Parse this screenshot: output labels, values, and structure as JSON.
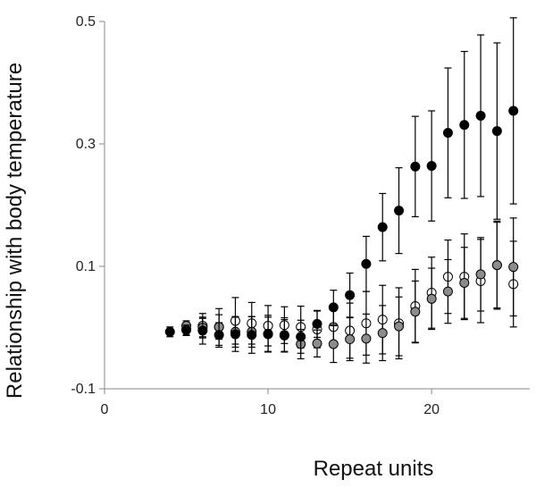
{
  "chart_data": {
    "type": "scatter",
    "xlabel": "Repeat units",
    "ylabel": "Relationship with body temperature",
    "xlim": [
      0,
      26
    ],
    "ylim": [
      -0.1,
      0.5
    ],
    "xticks": [
      0,
      10,
      20
    ],
    "yticks": [
      -0.1,
      0.1,
      0.3,
      0.5
    ],
    "y_tick_labels": [
      "-0.1",
      "0.1",
      "0.3",
      "0.5"
    ],
    "x_tick_labels": [
      "0",
      "10",
      "20"
    ],
    "grid": false,
    "legend": "none",
    "series": [
      {
        "style": "filled-black",
        "color": "#000000",
        "points": [
          {
            "x": 4,
            "y": -0.007,
            "err": 0.008
          },
          {
            "x": 5,
            "y": -0.004,
            "err": 0.008
          },
          {
            "x": 6,
            "y": -0.005,
            "err": 0.022
          },
          {
            "x": 7,
            "y": -0.012,
            "err": 0.02
          },
          {
            "x": 8,
            "y": -0.011,
            "err": 0.028
          },
          {
            "x": 9,
            "y": -0.012,
            "err": 0.03
          },
          {
            "x": 10,
            "y": -0.01,
            "err": 0.03
          },
          {
            "x": 11,
            "y": -0.012,
            "err": 0.028
          },
          {
            "x": 12,
            "y": -0.015,
            "err": 0.027
          },
          {
            "x": 13,
            "y": 0.006,
            "err": 0.022
          },
          {
            "x": 14,
            "y": 0.033,
            "err": 0.028
          },
          {
            "x": 15,
            "y": 0.053,
            "err": 0.036
          },
          {
            "x": 16,
            "y": 0.104,
            "err": 0.045
          },
          {
            "x": 17,
            "y": 0.164,
            "err": 0.055
          },
          {
            "x": 18,
            "y": 0.191,
            "err": 0.07
          },
          {
            "x": 19,
            "y": 0.263,
            "err": 0.082
          },
          {
            "x": 20,
            "y": 0.264,
            "err": 0.09
          },
          {
            "x": 21,
            "y": 0.318,
            "err": 0.106
          },
          {
            "x": 22,
            "y": 0.331,
            "err": 0.12
          },
          {
            "x": 23,
            "y": 0.346,
            "err": 0.132
          },
          {
            "x": 24,
            "y": 0.321,
            "err": 0.144
          },
          {
            "x": 25,
            "y": 0.354,
            "err": 0.152
          }
        ]
      },
      {
        "style": "filled-gray",
        "color": "#8c8c8c",
        "points": [
          {
            "x": 5,
            "y": 0.003,
            "err": 0.008
          },
          {
            "x": 6,
            "y": 0.0,
            "err": 0.015
          },
          {
            "x": 7,
            "y": 0.001,
            "err": 0.02
          },
          {
            "x": 8,
            "y": -0.007,
            "err": 0.025
          },
          {
            "x": 9,
            "y": -0.007,
            "err": 0.025
          },
          {
            "x": 10,
            "y": -0.011,
            "err": 0.028
          },
          {
            "x": 11,
            "y": -0.013,
            "err": 0.026
          },
          {
            "x": 12,
            "y": -0.027,
            "err": 0.024
          },
          {
            "x": 13,
            "y": -0.026,
            "err": 0.022
          },
          {
            "x": 14,
            "y": -0.027,
            "err": 0.03
          },
          {
            "x": 15,
            "y": -0.019,
            "err": 0.035
          },
          {
            "x": 16,
            "y": -0.018,
            "err": 0.04
          },
          {
            "x": 17,
            "y": -0.009,
            "err": 0.045
          },
          {
            "x": 18,
            "y": 0.002,
            "err": 0.048
          },
          {
            "x": 19,
            "y": 0.026,
            "err": 0.05
          },
          {
            "x": 20,
            "y": 0.047,
            "err": 0.05
          },
          {
            "x": 21,
            "y": 0.059,
            "err": 0.052
          },
          {
            "x": 22,
            "y": 0.073,
            "err": 0.058
          },
          {
            "x": 23,
            "y": 0.087,
            "err": 0.06
          },
          {
            "x": 24,
            "y": 0.102,
            "err": 0.07
          },
          {
            "x": 25,
            "y": 0.099,
            "err": 0.08
          }
        ]
      },
      {
        "style": "open-white",
        "color": "#ffffff",
        "points": [
          {
            "x": 5,
            "y": -0.003,
            "err": 0.01
          },
          {
            "x": 6,
            "y": 0.003,
            "err": 0.02
          },
          {
            "x": 7,
            "y": 0.001,
            "err": 0.03
          },
          {
            "x": 8,
            "y": 0.011,
            "err": 0.038
          },
          {
            "x": 9,
            "y": 0.007,
            "err": 0.034
          },
          {
            "x": 10,
            "y": 0.003,
            "err": 0.033
          },
          {
            "x": 11,
            "y": 0.004,
            "err": 0.03
          },
          {
            "x": 12,
            "y": 0.001,
            "err": 0.034
          },
          {
            "x": 13,
            "y": -0.003,
            "err": 0.03
          },
          {
            "x": 14,
            "y": 0.001,
            "err": 0.028
          },
          {
            "x": 15,
            "y": -0.005,
            "err": 0.045
          },
          {
            "x": 16,
            "y": 0.007,
            "err": 0.052
          },
          {
            "x": 17,
            "y": 0.013,
            "err": 0.056
          },
          {
            "x": 18,
            "y": 0.007,
            "err": 0.058
          },
          {
            "x": 19,
            "y": 0.035,
            "err": 0.06
          },
          {
            "x": 20,
            "y": 0.057,
            "err": 0.058
          },
          {
            "x": 21,
            "y": 0.083,
            "err": 0.06
          },
          {
            "x": 22,
            "y": 0.083,
            "err": 0.07
          },
          {
            "x": 23,
            "y": 0.076,
            "err": 0.068
          },
          {
            "x": 24,
            "y": 0.102,
            "err": 0.072
          },
          {
            "x": 25,
            "y": 0.071,
            "err": 0.07
          }
        ]
      }
    ]
  }
}
